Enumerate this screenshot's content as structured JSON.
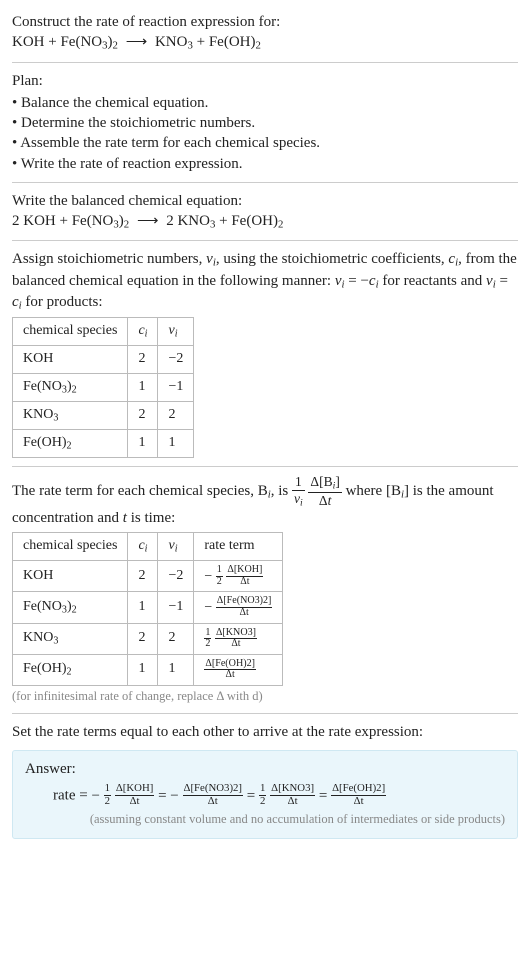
{
  "header": {
    "title": "Construct the rate of reaction expression for:",
    "lhs1": "KOH",
    "lhs2": "Fe(NO",
    "lhs2_sub1": "3",
    "lhs2_par": ")",
    "lhs2_sub2": "2",
    "arrow": "⟶",
    "rhs1": "KNO",
    "rhs1_sub": "3",
    "rhs2": "Fe(OH)",
    "rhs2_sub": "2"
  },
  "plan": {
    "label": "Plan:",
    "items": [
      "Balance the chemical equation.",
      "Determine the stoichiometric numbers.",
      "Assemble the rate term for each chemical species.",
      "Write the rate of reaction expression."
    ]
  },
  "balanced": {
    "label": "Write the balanced chemical equation:",
    "c1": "2 ",
    "r1": "KOH",
    "plus1": " + ",
    "r2a": "Fe(NO",
    "r2s1": "3",
    "r2b": ")",
    "r2s2": "2",
    "arrow": "⟶",
    "c2": "2 ",
    "p1": "KNO",
    "p1s": "3",
    "plus2": " + ",
    "p2": "Fe(OH)",
    "p2s": "2"
  },
  "assign": {
    "text_a": "Assign stoichiometric numbers, ",
    "nu": "ν",
    "subi": "i",
    "text_b": ", using the stoichiometric coefficients, ",
    "c": "c",
    "text_c": ", from the balanced chemical equation in the following manner: ",
    "eq1": " = −",
    "text_d": " for reactants and ",
    "eq2": " = ",
    "text_e": " for products:"
  },
  "table1": {
    "headers": [
      "chemical species",
      "cᵢ",
      "νᵢ"
    ],
    "rows": [
      {
        "species_html": "KOH",
        "c": "2",
        "nu": "−2"
      },
      {
        "species_html": "Fe(NO<sub>3</sub>)<sub>2</sub>",
        "c": "1",
        "nu": "−1"
      },
      {
        "species_html": "KNO<sub>3</sub>",
        "c": "2",
        "nu": "2"
      },
      {
        "species_html": "Fe(OH)<sub>2</sub>",
        "c": "1",
        "nu": "1"
      }
    ]
  },
  "rateterm_text": {
    "a": "The rate term for each chemical species, B",
    "b": ", is ",
    "c": " where [B",
    "d": "] is the amount concentration and ",
    "t": "t",
    "e": " is time:"
  },
  "table2": {
    "headers": [
      "chemical species",
      "cᵢ",
      "νᵢ",
      "rate term"
    ],
    "rows": [
      {
        "species_html": "KOH",
        "c": "2",
        "nu": "−2",
        "rate": {
          "sign": "−",
          "coef_num": "1",
          "coef_den": "2",
          "num": "Δ[KOH]",
          "den": "Δt"
        }
      },
      {
        "species_html": "Fe(NO<sub>3</sub>)<sub>2</sub>",
        "c": "1",
        "nu": "−1",
        "rate": {
          "sign": "−",
          "coef_num": "",
          "coef_den": "",
          "num": "Δ[Fe(NO3)2]",
          "den": "Δt"
        }
      },
      {
        "species_html": "KNO<sub>3</sub>",
        "c": "2",
        "nu": "2",
        "rate": {
          "sign": "",
          "coef_num": "1",
          "coef_den": "2",
          "num": "Δ[KNO3]",
          "den": "Δt"
        }
      },
      {
        "species_html": "Fe(OH)<sub>2</sub>",
        "c": "1",
        "nu": "1",
        "rate": {
          "sign": "",
          "coef_num": "",
          "coef_den": "",
          "num": "Δ[Fe(OH)2]",
          "den": "Δt"
        }
      }
    ],
    "note": "(for infinitesimal rate of change, replace Δ with d)"
  },
  "setequal": "Set the rate terms equal to each other to arrive at the rate expression:",
  "answer": {
    "label": "Answer:",
    "prefix": "rate = ",
    "terms": [
      {
        "sign": "−",
        "coef_num": "1",
        "coef_den": "2",
        "num": "Δ[KOH]",
        "den": "Δt"
      },
      {
        "sign": "−",
        "coef_num": "",
        "coef_den": "",
        "num": "Δ[Fe(NO3)2]",
        "den": "Δt"
      },
      {
        "sign": "",
        "coef_num": "1",
        "coef_den": "2",
        "num": "Δ[KNO3]",
        "den": "Δt"
      },
      {
        "sign": "",
        "coef_num": "",
        "coef_den": "",
        "num": "Δ[Fe(OH)2]",
        "den": "Δt"
      }
    ],
    "eqsym": " = ",
    "note": "(assuming constant volume and no accumulation of intermediates or side products)"
  },
  "colors": {
    "rule": "#cccccc",
    "answer_bg": "#eaf6fb",
    "answer_border": "#cfe8f2",
    "note": "#888888"
  }
}
